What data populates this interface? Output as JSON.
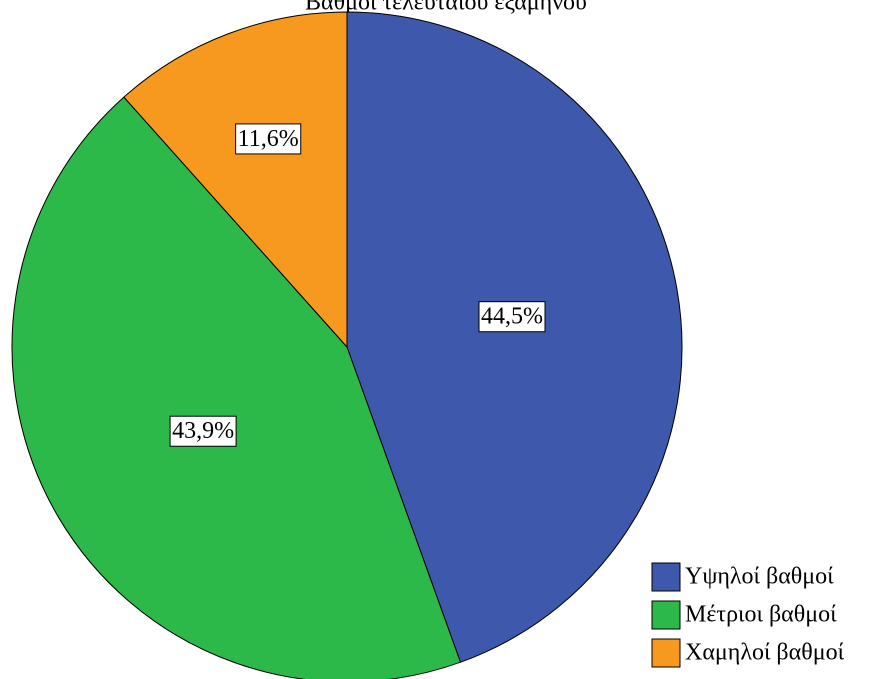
{
  "chart_data": {
    "type": "pie",
    "title": "Βαθμοί τελευταίου εξαμήνου",
    "categories": [
      "Υψηλοί βαθμοί",
      "Μέτριοι βαθμοί",
      "Χαμηλοί βαθμοί"
    ],
    "values": [
      44.5,
      43.9,
      11.6
    ],
    "value_labels": [
      "44,5%",
      "43,9%",
      "11,6%"
    ],
    "colors": [
      "#3e58ac",
      "#2db84a",
      "#f7991f"
    ],
    "legend": "bottom-right"
  }
}
